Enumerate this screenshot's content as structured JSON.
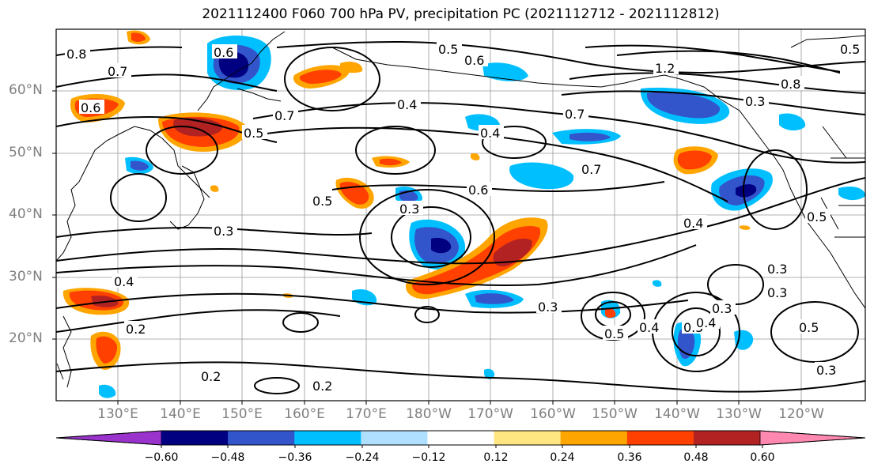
{
  "title": "2021112400 F060 700 hPa PV, precipitation PC (2021112712 - 2021112812)",
  "lat_labels": [
    "60°N",
    "50°N",
    "40°N",
    "30°N",
    "20°N"
  ],
  "lon_labels": [
    "130°E",
    "140°E",
    "150°E",
    "160°E",
    "170°E",
    "180°W",
    "170°W",
    "160°W",
    "150°W",
    "140°W",
    "130°W",
    "120°W"
  ],
  "contour_labels": [
    "0.8",
    "0.7",
    "0.6",
    "0.6",
    "0.5",
    "0.6",
    "0.5",
    "0.4",
    "0.7",
    "0.5",
    "0.4",
    "0.6",
    "0.5",
    "0.3",
    "0.3",
    "0.4",
    "0.2",
    "0.2",
    "0.2",
    "0.3",
    "0.4",
    "0.5",
    "0.4",
    "0.5",
    "0.3",
    "0.4",
    "0.5",
    "0.3",
    "0.7",
    "0.7",
    "0.3",
    "0.8",
    "1.2",
    "0.3",
    "0.5",
    "0.3"
  ],
  "colorbar": {
    "tick_labels": [
      "−0.60",
      "−0.48",
      "−0.36",
      "−0.24",
      "−0.12",
      "0.12",
      "0.24",
      "0.36",
      "0.48",
      "0.60"
    ],
    "colors": [
      "#9933cc",
      "#000080",
      "#3355cc",
      "#00bfff",
      "#b0e0ff",
      "#ffffff",
      "#ffe680",
      "#ffa500",
      "#ff4000",
      "#b22222",
      "#ff88b0"
    ]
  },
  "precip_fill_colors": {
    "neg_light": "#b0e0ff",
    "neg_mid": "#00bfff",
    "neg_strong": "#3355cc",
    "neg_max": "#000080",
    "pos_light": "#ffe680",
    "pos_mid": "#ffa500",
    "pos_strong": "#ff4000",
    "pos_max": "#b22222"
  }
}
